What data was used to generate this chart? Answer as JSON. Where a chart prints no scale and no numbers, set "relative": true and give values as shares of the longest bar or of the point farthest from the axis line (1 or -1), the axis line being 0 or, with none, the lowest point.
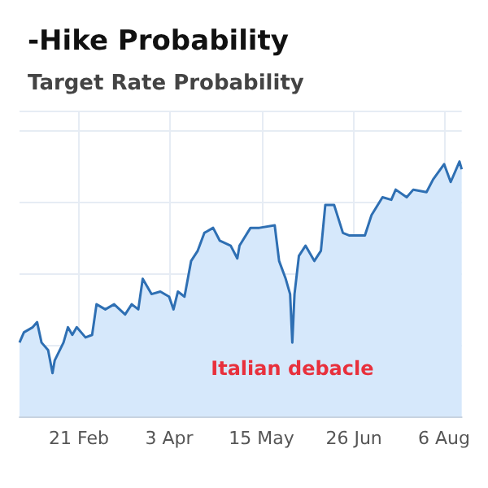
{
  "chart_data": {
    "type": "area",
    "title": "-Hike Probability",
    "subtitle": "Target Rate Probability",
    "relative": true,
    "grid": true,
    "marker": "none",
    "line_style": "solid",
    "xlim": [
      "--01-25",
      "--08-14"
    ],
    "xticks": [
      {
        "value": "--02-21",
        "label": "21 Feb"
      },
      {
        "value": "--04-03",
        "label": "3 Apr"
      },
      {
        "value": "--05-15",
        "label": "15 May"
      },
      {
        "value": "--06-26",
        "label": "26 Jun"
      },
      {
        "value": "--08-06",
        "label": "6 Aug"
      }
    ],
    "x": [
      "--01-25",
      "--01-27",
      "--01-31",
      "--02-02",
      "--02-04",
      "--02-07",
      "--02-09",
      "--02-10",
      "--02-14",
      "--02-16",
      "--02-18",
      "--02-20",
      "--02-24",
      "--02-27",
      "--03-01",
      "--03-05",
      "--03-09",
      "--03-14",
      "--03-17",
      "--03-20",
      "--03-22",
      "--03-26",
      "--03-30",
      "--04-03",
      "--04-05",
      "--04-07",
      "--04-10",
      "--04-13",
      "--04-16",
      "--04-19",
      "--04-23",
      "--04-26",
      "--05-01",
      "--05-04",
      "--05-05",
      "--05-10",
      "--05-14",
      "--05-21",
      "--05-23",
      "--05-26",
      "--05-28",
      "--05-29",
      "--05-30",
      "--06-01",
      "--06-04",
      "--06-08",
      "--06-11",
      "--06-13",
      "--06-17",
      "--06-21",
      "--06-24",
      "--07-01",
      "--07-04",
      "--07-09",
      "--07-13",
      "--07-15",
      "--07-20",
      "--07-23",
      "--07-29",
      "--08-01",
      "--08-06",
      "--08-09",
      "--08-13",
      "--08-14"
    ],
    "series": [
      {
        "color": "#2e6fb3",
        "values": [
          0.29,
          0.33,
          0.35,
          0.37,
          0.29,
          0.26,
          0.17,
          0.22,
          0.29,
          0.35,
          0.32,
          0.35,
          0.31,
          0.32,
          0.44,
          0.42,
          0.44,
          0.4,
          0.44,
          0.42,
          0.54,
          0.48,
          0.49,
          0.47,
          0.42,
          0.49,
          0.47,
          0.61,
          0.65,
          0.72,
          0.74,
          0.69,
          0.67,
          0.62,
          0.67,
          0.74,
          0.74,
          0.75,
          0.61,
          0.54,
          0.48,
          0.29,
          0.48,
          0.63,
          0.67,
          0.61,
          0.65,
          0.83,
          0.83,
          0.72,
          0.71,
          0.71,
          0.79,
          0.86,
          0.85,
          0.89,
          0.86,
          0.89,
          0.88,
          0.93,
          0.99,
          0.92,
          1,
          0.97
        ]
      }
    ],
    "annotations": [
      {
        "text": "Italian debacle",
        "x": "--05-29",
        "y": 0.29
      }
    ]
  }
}
